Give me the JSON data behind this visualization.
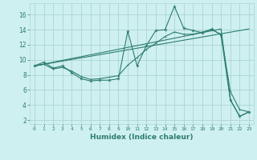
{
  "xlabel": "Humidex (Indice chaleur)",
  "background_color": "#cff0f0",
  "grid_color": "#aad4d4",
  "line_color": "#2d7d6f",
  "xlim": [
    -0.5,
    23.5
  ],
  "ylim": [
    1.5,
    17.5
  ],
  "yticks": [
    2,
    4,
    6,
    8,
    10,
    12,
    14,
    16
  ],
  "xticks": [
    0,
    1,
    2,
    3,
    4,
    5,
    6,
    7,
    8,
    9,
    10,
    11,
    12,
    13,
    14,
    15,
    16,
    17,
    18,
    19,
    20,
    21,
    22,
    23
  ],
  "line1_x": [
    0,
    1,
    2,
    3,
    4,
    5,
    6,
    7,
    8,
    9,
    10,
    11,
    12,
    13,
    14,
    15,
    16,
    17,
    18,
    19,
    20,
    21,
    22,
    23
  ],
  "line1_y": [
    9.2,
    9.7,
    8.9,
    9.2,
    8.3,
    7.5,
    7.2,
    7.3,
    7.3,
    7.5,
    13.8,
    9.2,
    11.9,
    13.9,
    14.0,
    17.1,
    14.2,
    13.9,
    13.6,
    14.1,
    13.3,
    4.7,
    2.5,
    3.1
  ],
  "line2_x": [
    0,
    1,
    2,
    3,
    4,
    5,
    6,
    7,
    8,
    9,
    10,
    11,
    12,
    13,
    14,
    15,
    16,
    17,
    18,
    19,
    20,
    21,
    22,
    23
  ],
  "line2_y": [
    9.2,
    9.4,
    8.8,
    9.0,
    8.5,
    7.8,
    7.4,
    7.5,
    7.7,
    7.9,
    9.3,
    10.3,
    11.4,
    12.2,
    13.1,
    13.7,
    13.4,
    13.4,
    13.7,
    14.0,
    13.4,
    5.8,
    3.4,
    3.1
  ],
  "line3_x": [
    0,
    23
  ],
  "line3_y": [
    9.2,
    14.1
  ],
  "line4_x": [
    0,
    20,
    21,
    22,
    23
  ],
  "line4_y": [
    9.2,
    14.1,
    4.7,
    2.5,
    3.1
  ]
}
